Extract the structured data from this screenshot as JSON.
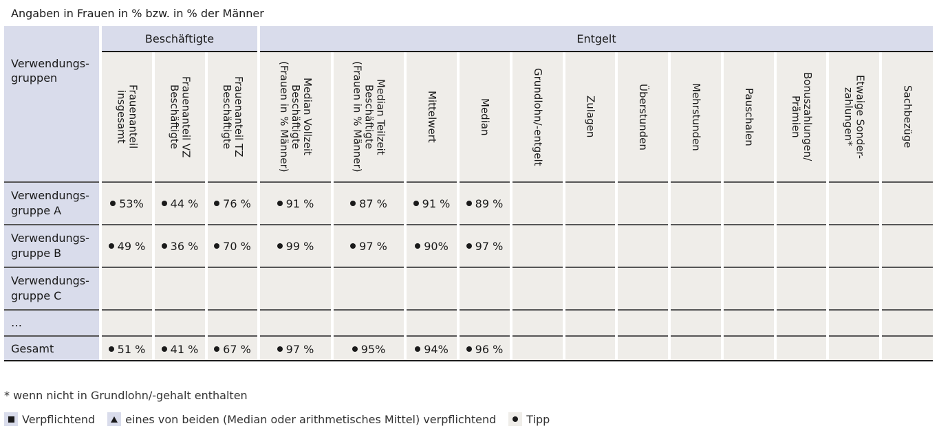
{
  "caption": "Angaben in Frauen in % bzw. in % der Männer",
  "groups": {
    "besch": "Beschäftigte",
    "entgelt": "Entgelt"
  },
  "row_header": "Verwendungs-\ngruppen",
  "columns": [
    "Frauenanteil\ninsgesamt",
    "Frauenanteil VZ\nBeschäftigte",
    "Frauenanteil TZ\nBeschäftigte",
    "Median Vollzeit\nBeschäftigte\n(Frauen in % Männer)",
    "Median Teilzeit\nBeschäftigte\n(Frauen in % Männer)",
    "Mittelwert",
    "Median",
    "Grundlohn/-entgelt",
    "Zulagen",
    "Überstunden",
    "Mehrstunden",
    "Pauschalen",
    "Bonuszahlungen/\nPrämien",
    "Etwaige Sonder-\nzahlungen*",
    "Sachbezüge"
  ],
  "rows": [
    {
      "label": "Verwendungs-\ngruppe A",
      "values": [
        "53%",
        "44 %",
        "76 %",
        "91 %",
        "87 %",
        "91 %",
        "89 %",
        "",
        "",
        "",
        "",
        "",
        "",
        "",
        ""
      ]
    },
    {
      "label": "Verwendungs-\ngruppe B",
      "values": [
        "49 %",
        "36 %",
        "70 %",
        "99 %",
        "97 %",
        "90%",
        "97 %",
        "",
        "",
        "",
        "",
        "",
        "",
        "",
        ""
      ]
    },
    {
      "label": "Verwendungs-\ngruppe C",
      "values": [
        "",
        "",
        "",
        "",
        "",
        "",
        "",
        "",
        "",
        "",
        "",
        "",
        "",
        "",
        ""
      ]
    },
    {
      "label": "…",
      "values": [
        "",
        "",
        "",
        "",
        "",
        "",
        "",
        "",
        "",
        "",
        "",
        "",
        "",
        "",
        ""
      ]
    },
    {
      "label": "Gesamt",
      "values": [
        "51 %",
        "41 %",
        "67 %",
        "97 %",
        "95%",
        "94%",
        "96 %",
        "",
        "",
        "",
        "",
        "",
        "",
        "",
        ""
      ]
    }
  ],
  "footnote": "* wenn nicht in Grundlohn/-gehalt enthalten",
  "legend": [
    {
      "icon": "square-icon",
      "label": "Verpflichtend"
    },
    {
      "icon": "triangle-icon",
      "label": "eines von beiden (Median oder arithmetisches Mittel) verpflichtend"
    },
    {
      "icon": "dot-icon",
      "label": "Tipp"
    }
  ]
}
